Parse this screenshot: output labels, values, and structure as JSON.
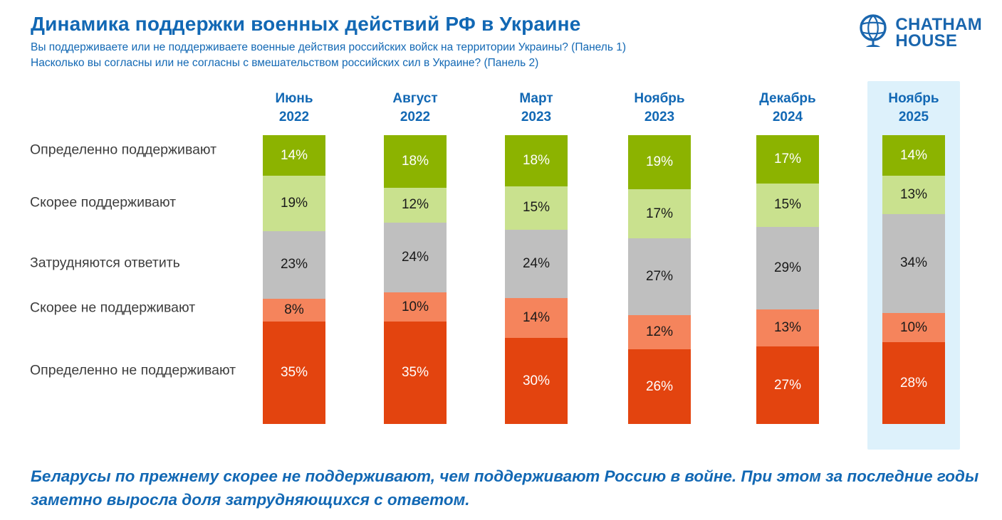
{
  "header": {
    "title": "Динамика поддержки военных действий РФ в Украине",
    "subtitle1": "Вы поддерживаете или не поддерживаете военные действия российских войск на территории Украины? (Панель 1)",
    "subtitle2": "Насколько вы согласны или не согласны с вмешательством российских сил в Украине? (Панель 2)"
  },
  "logo": {
    "icon": "globe-icon",
    "line1": "CHATHAM",
    "line2": "HOUSE"
  },
  "chart_data": {
    "type": "bar",
    "stacked": true,
    "orientation": "vertical-100pct",
    "unit": "%",
    "categories": [
      {
        "month": "Июнь",
        "year": "2022"
      },
      {
        "month": "Август",
        "year": "2022"
      },
      {
        "month": "Март",
        "year": "2023"
      },
      {
        "month": "Ноябрь",
        "year": "2023"
      },
      {
        "month": "Декабрь",
        "year": "2024"
      },
      {
        "month": "Ноябрь",
        "year": "2025"
      }
    ],
    "series": [
      {
        "name": "Определенно поддерживают",
        "color": "#8CB300",
        "text_color": "#FFFFFF",
        "values": [
          14,
          18,
          18,
          19,
          17,
          14
        ]
      },
      {
        "name": "Скорее поддерживают",
        "color": "#C9E18E",
        "text_color": "#1A1A1A",
        "values": [
          19,
          12,
          15,
          17,
          15,
          13
        ]
      },
      {
        "name": "Затрудняются ответить",
        "color": "#BFBFBF",
        "text_color": "#1A1A1A",
        "values": [
          23,
          24,
          24,
          27,
          29,
          34
        ]
      },
      {
        "name": "Скорее не поддерживают",
        "color": "#F5845C",
        "text_color": "#1A1A1A",
        "values": [
          8,
          10,
          14,
          12,
          13,
          10
        ]
      },
      {
        "name": "Определенно не поддерживают",
        "color": "#E3440F",
        "text_color": "#FFFFFF",
        "values": [
          35,
          35,
          30,
          26,
          27,
          28
        ]
      }
    ],
    "highlighted_category_index": 5,
    "highlight_color": "#DDF1FB",
    "legend_position": "left-row-labels",
    "grid": false
  },
  "footer": {
    "note": "Беларусы по прежнему скорее не поддерживают, чем поддерживают Россию в войне. При этом за последние годы заметно выросла доля затрудняющихся с ответом."
  },
  "colors": {
    "accent_blue": "#1268B4",
    "logo_blue": "#1A66AE",
    "label_gray": "#3D3D3D"
  }
}
